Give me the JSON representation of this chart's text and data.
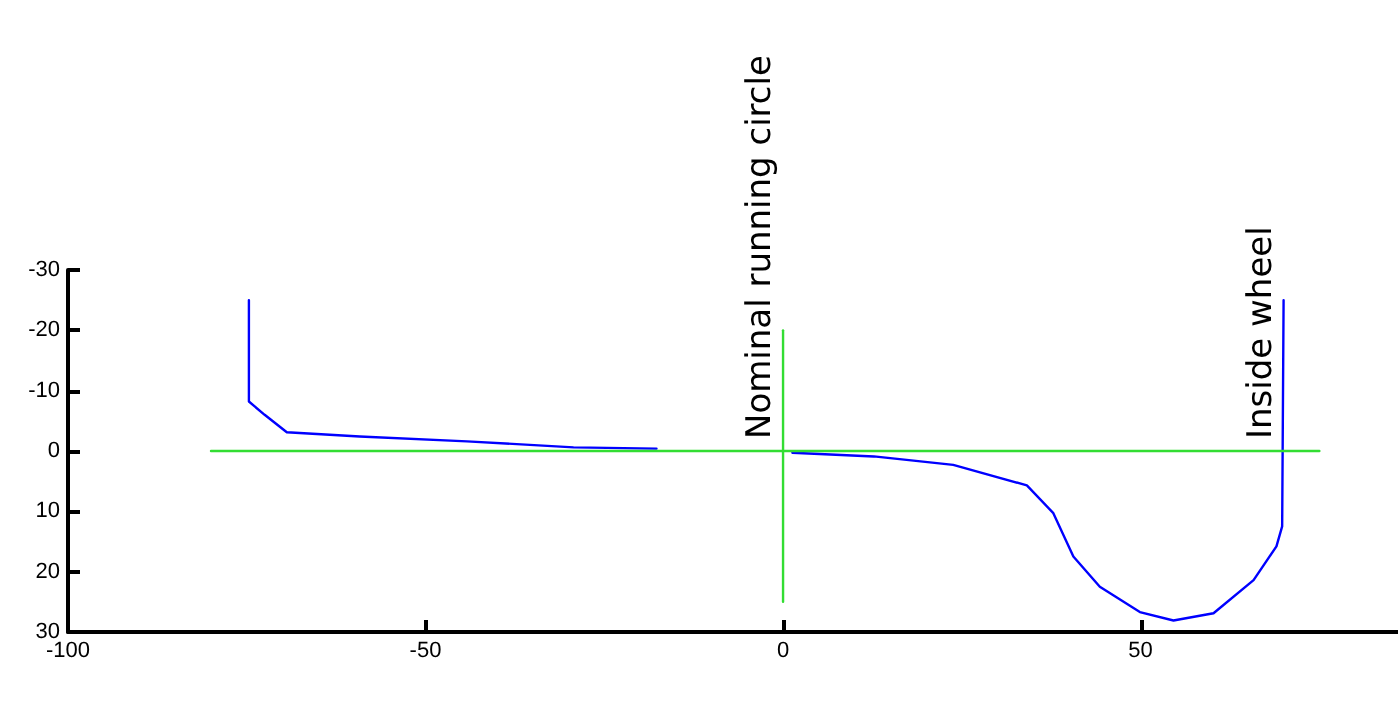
{
  "chart_data": {
    "type": "line",
    "series": [
      {
        "color": "#0000ff",
        "x": [
          -74.7,
          -74.7,
          -72.5,
          -69.4,
          -59.2,
          -44.2,
          -29.3,
          -17.7,
          -8,
          1.3,
          12.7,
          23.8,
          34.1,
          37.8,
          40.6,
          44.3,
          49.9,
          54.6,
          60.2,
          65.8,
          69.0,
          69.8,
          70.0
        ],
        "values": [
          -25,
          -8.2,
          -6,
          -3.1,
          -2.4,
          -1.6,
          -0.6,
          -0.4,
          null,
          0.3,
          0.9,
          2.3,
          5.7,
          10.3,
          17.5,
          22.5,
          26.7,
          28.1,
          26.9,
          21.4,
          15.8,
          12.5,
          -25
        ]
      },
      {
        "color": "#33dd33",
        "x": [
          -80,
          75
        ],
        "values": [
          0,
          0
        ]
      },
      {
        "color": "#33dd33",
        "x": [
          0,
          0
        ],
        "values": [
          -20,
          25
        ]
      }
    ],
    "annotations": [
      {
        "text": "Nominal running circle",
        "x": 0,
        "y": 0
      },
      {
        "text": "Inside wheel",
        "x": 70,
        "y": 0
      }
    ],
    "xlim": [
      -100,
      86
    ],
    "xticks": [
      -100,
      -50,
      0,
      50
    ],
    "ylim": [
      30,
      -30
    ],
    "yticks": [
      -30,
      -20,
      -10,
      0,
      10,
      20,
      30
    ],
    "marker": "none",
    "line_style": "solid"
  }
}
